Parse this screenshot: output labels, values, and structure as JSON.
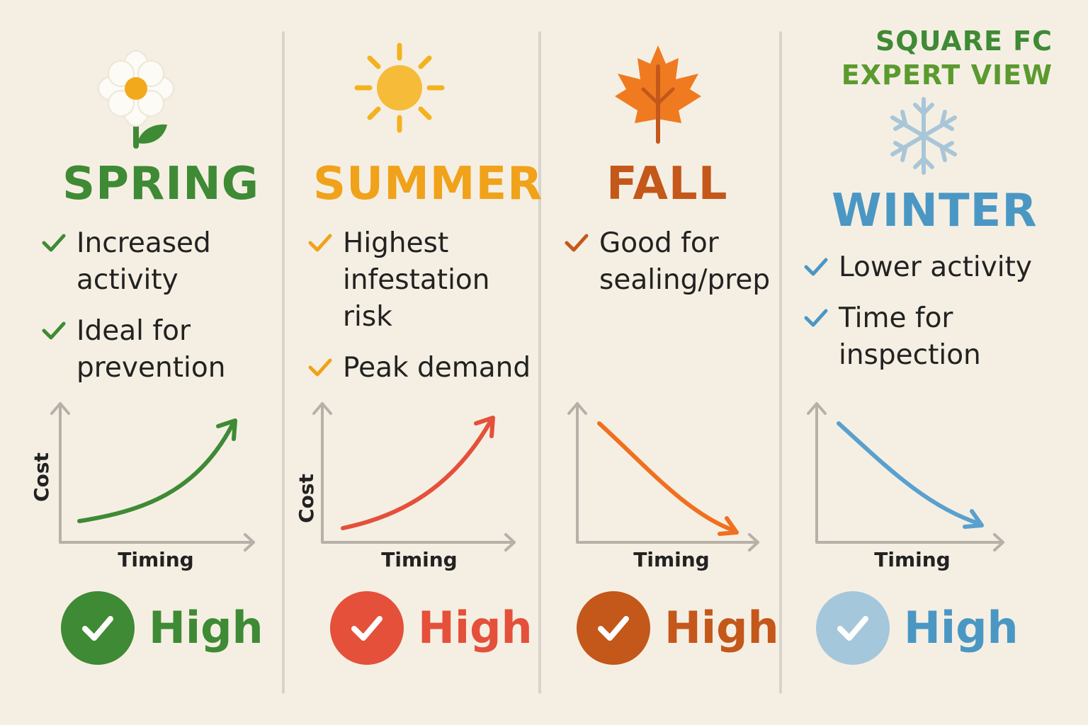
{
  "brand": {
    "line1": "SQUARE FC",
    "line2": "EXPERT VIEW"
  },
  "seasons": [
    {
      "name": "SPRING",
      "icon": "flower-icon",
      "bullets": [
        "Increased activity",
        "Ideal for prevention"
      ],
      "axis_y": "Cost",
      "axis_x": "Timing",
      "trend": "rising",
      "rating": "High",
      "colors": {
        "title": "#3f8a35",
        "check": "#3f8a35",
        "line": "#3f8a35",
        "badge": "#3f8a35"
      }
    },
    {
      "name": "SUMMER",
      "icon": "sun-icon",
      "bullets": [
        "Highest infestation risk",
        "Peak demand"
      ],
      "axis_y": "Cost",
      "axis_x": "Timing",
      "trend": "rising",
      "rating": "High",
      "colors": {
        "title": "#f0a21a",
        "check": "#f0a21a",
        "line": "#e4503a",
        "badge": "#e4503a"
      }
    },
    {
      "name": "FALL",
      "icon": "maple-leaf-icon",
      "bullets": [
        "Good for sealing/prep"
      ],
      "axis_y": "",
      "axis_x": "Timing",
      "trend": "falling",
      "rating": "High",
      "colors": {
        "title": "#c4571a",
        "check": "#c4571a",
        "line": "#f07020",
        "badge": "#c4571a"
      }
    },
    {
      "name": "WINTER",
      "icon": "snowflake-icon",
      "bullets": [
        "Lower activity",
        "Time for inspection"
      ],
      "axis_y": "",
      "axis_x": "Timing",
      "trend": "falling",
      "rating": "High",
      "colors": {
        "title": "#4b97c4",
        "check": "#4b97c4",
        "line": "#5aa0cf",
        "badge": "#a4c7dc",
        "rating": "#4b97c4"
      }
    }
  ],
  "colors": {
    "background": "#f5efe3",
    "axis": "#b5b0a8",
    "brand1": "#3f8a35",
    "brand2": "#5b9a2f"
  }
}
